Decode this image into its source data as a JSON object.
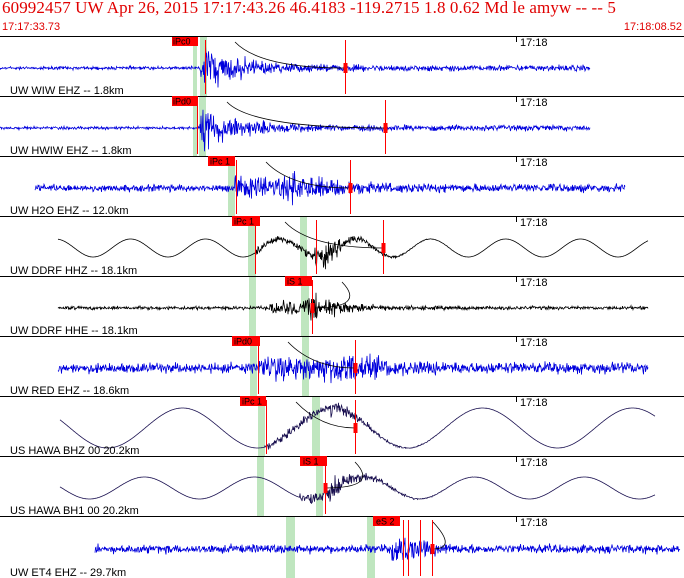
{
  "header": {
    "title": "60992457 UW Apr 26, 2015 17:17:43.26   46.4183 -119.2715  1.8 0.62 Md le amyw -- --   5",
    "start_time": "17:17:33.73",
    "end_time": "17:18:08.52"
  },
  "colors": {
    "header_red": "#e00000",
    "trace_blue": "#0000dd",
    "trace_black": "#000000",
    "pick_red": "#ff0000",
    "window_green": "#bfe6bf"
  },
  "traces": [
    {
      "label": "UW WIW EHZ -- 1.8km",
      "time_tick": "17:18",
      "color": "blue",
      "picks": [
        {
          "label": "iPc0"
        }
      ]
    },
    {
      "label": "UW HWIW EHZ -- 1.8km",
      "time_tick": "17:18",
      "color": "blue",
      "picks": [
        {
          "label": "iPd0"
        }
      ]
    },
    {
      "label": "UW H2O EHZ -- 12.0km",
      "time_tick": "17:18",
      "color": "blue",
      "picks": [
        {
          "label": "iPc 1"
        }
      ]
    },
    {
      "label": "UW DDRF HHZ -- 18.1km",
      "time_tick": "17:18",
      "color": "black",
      "picks": [
        {
          "label": "iPc 1"
        }
      ]
    },
    {
      "label": "UW DDRF HHE -- 18.1km",
      "time_tick": "17:18",
      "color": "black",
      "picks": [
        {
          "label": "iS 1"
        }
      ]
    },
    {
      "label": "UW RED EHZ -- 18.6km",
      "time_tick": "17:18",
      "color": "blue",
      "picks": [
        {
          "label": "iPd0"
        }
      ]
    },
    {
      "label": "US HAWA BHZ 00 20.2km",
      "time_tick": "17:18",
      "color": "navy",
      "picks": [
        {
          "label": "iPc 1"
        }
      ]
    },
    {
      "label": "US HAWA BH1 00 20.2km",
      "time_tick": "17:18",
      "color": "navy",
      "picks": [
        {
          "label": "iS 1"
        }
      ]
    },
    {
      "label": "UW ET4 EHZ -- 29.7km",
      "time_tick": "17:18",
      "color": "blue",
      "picks": [
        {
          "label": "eS 2"
        }
      ]
    }
  ]
}
